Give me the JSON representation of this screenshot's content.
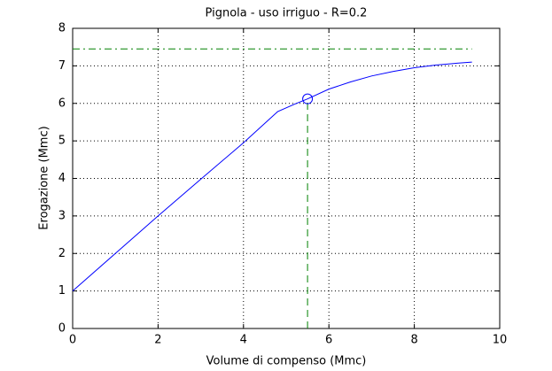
{
  "chart_data": {
    "type": "line",
    "title": "Pignola  -  uso irriguo  -   R=0.2",
    "x_label": "Volume di compenso (Mmc)",
    "y_label": "Erogazione (Mmc)",
    "xlim": [
      0,
      10
    ],
    "xticks": [
      0,
      2,
      4,
      6,
      8,
      10
    ],
    "ylim": [
      0,
      8
    ],
    "yticks": [
      0,
      1,
      2,
      3,
      4,
      5,
      6,
      7,
      8
    ],
    "grid": true,
    "series": [
      {
        "color": "#0000ff",
        "linestyle": "-",
        "marker": "none",
        "x": [
          0,
          1,
          2,
          3,
          4,
          4.8,
          5.2,
          5.5,
          6,
          6.5,
          7,
          7.5,
          8,
          8.5,
          9,
          9.35
        ],
        "values": [
          1,
          2,
          3,
          3.98,
          4.95,
          5.78,
          5.98,
          6.12,
          6.38,
          6.57,
          6.73,
          6.85,
          6.95,
          7.02,
          7.07,
          7.1
        ]
      },
      {
        "color": "#008000",
        "linestyle": "-.",
        "marker": "none",
        "x": [
          0,
          9.35
        ],
        "values": [
          7.45,
          7.45
        ]
      },
      {
        "color": "#008000",
        "linestyle": "--",
        "marker": "none",
        "x": [
          5.5,
          5.5
        ],
        "values": [
          0,
          6.12
        ]
      },
      {
        "color": "#0000ff",
        "linestyle": "none",
        "marker": "o",
        "x": [
          5.5
        ],
        "values": [
          6.12
        ]
      }
    ]
  }
}
